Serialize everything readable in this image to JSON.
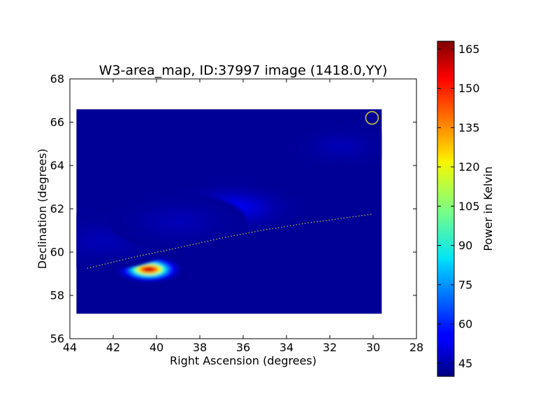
{
  "chart_data": {
    "type": "heatmap",
    "title": "W3-area_map, ID:37997 image (1418.0,YY)",
    "xlabel": "Right Ascension (degrees)",
    "ylabel": "Declination (degrees)",
    "xlim": [
      44,
      28
    ],
    "ylim": [
      56,
      68
    ],
    "xticks": [
      "44",
      "42",
      "40",
      "38",
      "36",
      "34",
      "32",
      "30",
      "28"
    ],
    "yticks": [
      "56",
      "58",
      "60",
      "62",
      "64",
      "66",
      "68"
    ],
    "image_extent": {
      "ra": [
        43.7,
        29.6
      ],
      "dec": [
        57.15,
        66.6
      ]
    },
    "background_level": 43,
    "sources": [
      {
        "ra": 40.35,
        "dec": 59.2,
        "peak": 168,
        "sigma_ra": 0.55,
        "sigma_dec": 0.22
      },
      {
        "ra": 36.5,
        "dec": 62.05,
        "peak": 55,
        "sigma_ra": 1.2,
        "sigma_dec": 0.45
      },
      {
        "ra": 31.5,
        "dec": 64.9,
        "peak": 47,
        "sigma_ra": 0.9,
        "sigma_dec": 0.4
      },
      {
        "ra": 42.5,
        "dec": 60.5,
        "peak": 47,
        "sigma_ra": 1.2,
        "sigma_dec": 0.5
      },
      {
        "ra": 39.0,
        "dec": 61.4,
        "peak": 47,
        "sigma_ra": 1.2,
        "sigma_dec": 0.5
      }
    ],
    "beam_marker": {
      "ra": 30.05,
      "dec": 66.2,
      "color": "#cccc33"
    },
    "dotted_line": {
      "color": "#cccc33",
      "points": [
        [
          43.2,
          59.25
        ],
        [
          41,
          59.78
        ],
        [
          39,
          60.2
        ],
        [
          37,
          60.65
        ],
        [
          35,
          61.03
        ],
        [
          33,
          61.35
        ],
        [
          31,
          61.62
        ],
        [
          30.05,
          61.75
        ]
      ]
    },
    "colorbar": {
      "label": "Power in Kelvin",
      "range": [
        40,
        168
      ],
      "ticks": [
        "45",
        "60",
        "75",
        "90",
        "105",
        "120",
        "135",
        "150",
        "165"
      ],
      "colormap": "jet"
    }
  }
}
